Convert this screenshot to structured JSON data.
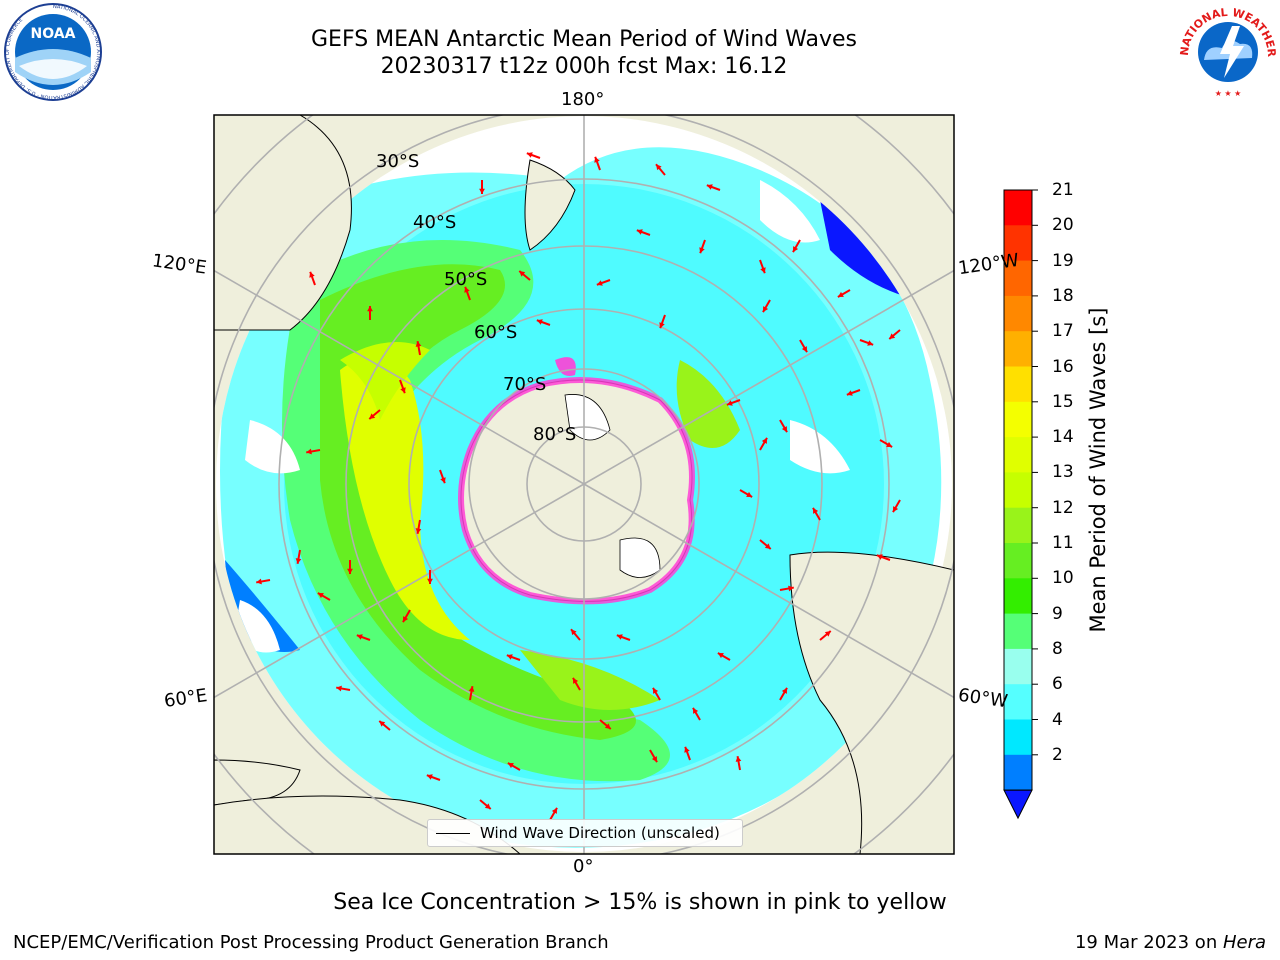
{
  "title": {
    "line1": "GEFS MEAN Antarctic Mean Period of Wind Waves",
    "line2": "20230317 t12z 000h fcst   Max: 16.12"
  },
  "logos": {
    "noaa": {
      "text": "NOAA",
      "ring_text": "NATIONAL OCEANIC AND ATMOSPHERIC ADMINISTRATION · U.S. DEPARTMENT OF COMMERCE",
      "icon": "noaa-logo-icon"
    },
    "nws": {
      "ring_text": "NATIONAL WEATHER SERVICE",
      "icon": "nws-logo-icon"
    }
  },
  "map": {
    "projection": "south-polar-stereographic",
    "longitude_labels": [
      "180°",
      "120°E",
      "120°W",
      "60°E",
      "60°W",
      "0°"
    ],
    "latitude_labels": [
      "30°S",
      "40°S",
      "50°S",
      "60°S",
      "70°S",
      "80°S"
    ],
    "colors": {
      "land": "#efefdc",
      "ice_edge": "#ff3fd6",
      "arrow": "#ff0000",
      "graticule": "#b0b0b0"
    }
  },
  "legend": {
    "label": "Wind Wave Direction (unscaled)"
  },
  "colorbar": {
    "label": "Mean Period of Wind Waves [s]",
    "ticks": [
      "21",
      "20",
      "19",
      "18",
      "17",
      "16",
      "15",
      "14",
      "13",
      "12",
      "11",
      "10",
      "9",
      "8",
      "6",
      "4",
      "2"
    ],
    "colors_top_to_bottom": [
      "#ff0000",
      "#ff3300",
      "#ff6600",
      "#ff8800",
      "#ffb000",
      "#ffe000",
      "#f4ff00",
      "#e0ff00",
      "#c6ff00",
      "#99f31a",
      "#66ee22",
      "#33ee00",
      "#55ff77",
      "#99ffee",
      "#55ffff",
      "#00e8ff",
      "#007fff"
    ],
    "extend_color": "#0a17ff"
  },
  "note": "Sea Ice Concentration > 15% is shown in pink to yellow",
  "footer": {
    "left": "NCEP/EMC/Verification Post Processing Product Generation Branch",
    "date": "19 Mar 2023 on ",
    "machine": "Hera"
  }
}
